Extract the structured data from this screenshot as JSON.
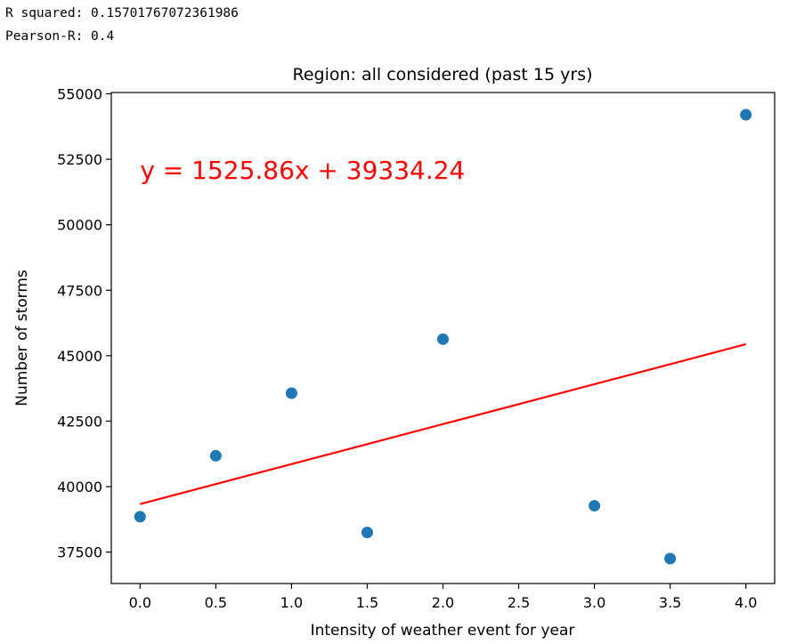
{
  "output": {
    "r_squared_text": "R squared: 0.15701767072361986",
    "pearson_text": "Pearson-R: 0.4"
  },
  "chart_data": {
    "type": "scatter",
    "title": "Region: all considered (past 15 yrs)",
    "xlabel": "Intensity of weather event for year",
    "ylabel": "Number of storms",
    "xlim": [
      -0.19,
      4.19
    ],
    "ylim": [
      36300,
      55050
    ],
    "x_ticks": [
      "0.0",
      "0.5",
      "1.0",
      "1.5",
      "2.0",
      "2.5",
      "3.0",
      "3.5",
      "4.0"
    ],
    "y_ticks": [
      "37500",
      "40000",
      "42500",
      "45000",
      "47500",
      "50000",
      "52500",
      "55000"
    ],
    "grid": false,
    "points": [
      {
        "x": 0.0,
        "y": 38850
      },
      {
        "x": 0.5,
        "y": 41180
      },
      {
        "x": 1.0,
        "y": 43570
      },
      {
        "x": 1.5,
        "y": 38250
      },
      {
        "x": 2.0,
        "y": 45630
      },
      {
        "x": 3.0,
        "y": 39270
      },
      {
        "x": 3.5,
        "y": 37250
      },
      {
        "x": 4.0,
        "y": 54200
      }
    ],
    "regression": {
      "slope": 1525.86,
      "intercept": 39334.24
    },
    "annotation": {
      "text": "y = 1525.86x + 39334.24",
      "x": 0.0,
      "y": 52100
    },
    "colors": {
      "points": "#1f77b4",
      "regression_line": "#ff0000",
      "annotation": "#ff0000",
      "axes": "#000000"
    }
  }
}
